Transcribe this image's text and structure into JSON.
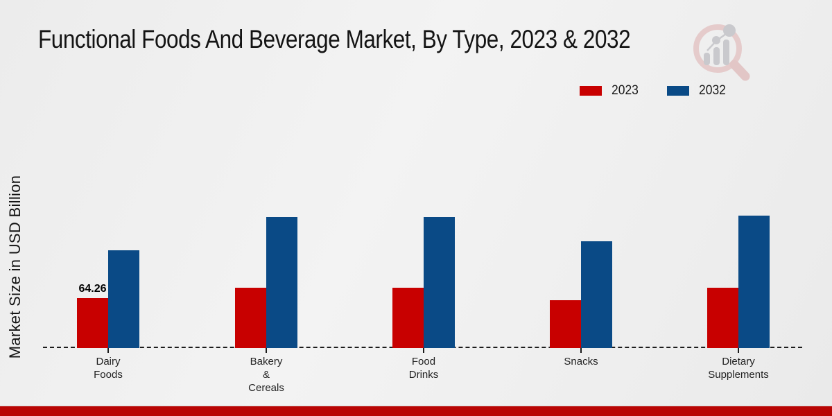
{
  "header": {
    "title": "Functional Foods And Beverage Market, By Type, 2023 & 2032"
  },
  "legend": [
    {
      "label": "2023",
      "color": "#c80000"
    },
    {
      "label": "2032",
      "color": "#0a4a86"
    }
  ],
  "footer": {
    "color": "#b90504"
  },
  "watermark_icon": "magnifier-bar-chart-logo-icon",
  "chart_data": {
    "type": "bar",
    "title": "Functional Foods And Beverage Market, By Type, 2023 & 2032",
    "xlabel": "",
    "ylabel": "Market Size in USD Billion",
    "categories": [
      "Dairy Foods",
      "Bakery & Cereals",
      "Food Drinks",
      "Snacks",
      "Dietary Supplements"
    ],
    "category_display": [
      "Dairy\nFoods",
      "Bakery\n&\nCereals",
      "Food\nDrinks",
      "Snacks",
      "Dietary\nSupplements"
    ],
    "series": [
      {
        "name": "2023",
        "color": "#c80000",
        "values": [
          64.26,
          77.7,
          77.7,
          61.6,
          77.7
        ]
      },
      {
        "name": "2032",
        "color": "#0a4a86",
        "values": [
          125.5,
          168.7,
          168.7,
          137.4,
          170.4
        ]
      }
    ],
    "data_labels": [
      {
        "category": "Dairy Foods",
        "series": "2023",
        "text": "64.26"
      }
    ],
    "ylim": [
      0,
      180
    ],
    "grid": false,
    "legend_position": "top-right",
    "baseline_style": "dashed",
    "units": "USD Billion"
  }
}
